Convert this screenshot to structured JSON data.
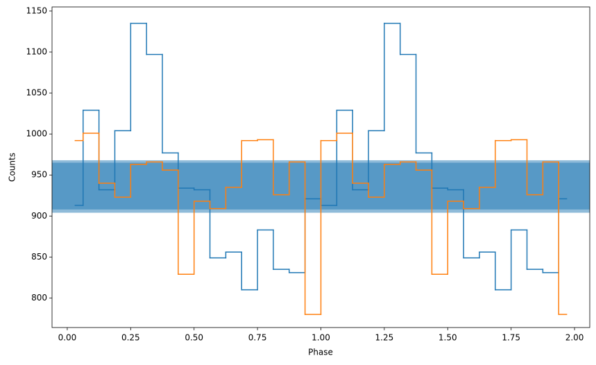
{
  "chart_data": {
    "type": "step",
    "xlabel": "Phase",
    "ylabel": "Counts",
    "x": [
      0.03125,
      0.09375,
      0.15625,
      0.21875,
      0.28125,
      0.34375,
      0.40625,
      0.46875,
      0.53125,
      0.59375,
      0.65625,
      0.71875,
      0.78125,
      0.84375,
      0.90625,
      0.96875,
      1.03125,
      1.09375,
      1.15625,
      1.21875,
      1.28125,
      1.34375,
      1.40625,
      1.46875,
      1.53125,
      1.59375,
      1.65625,
      1.71875,
      1.78125,
      1.84375,
      1.90625,
      1.96875
    ],
    "series": [
      {
        "color": "#1f77b4",
        "values": [
          913,
          1029,
          932,
          1004,
          1135,
          1097,
          977,
          934,
          932,
          849,
          856,
          810,
          883,
          835,
          831,
          921,
          913,
          1029,
          932,
          1004,
          1135,
          1097,
          977,
          934,
          932,
          849,
          856,
          810,
          883,
          835,
          831,
          921
        ]
      },
      {
        "color": "#ff7f0e",
        "values": [
          992,
          1001,
          940,
          923,
          963,
          966,
          956,
          829,
          918,
          909,
          935,
          992,
          993,
          926,
          966,
          780,
          992,
          1001,
          940,
          923,
          963,
          966,
          956,
          829,
          918,
          909,
          935,
          992,
          993,
          926,
          966,
          780
        ]
      }
    ],
    "bands": [
      {
        "lower": 904,
        "upper": 968
      },
      {
        "lower": 908,
        "upper": 965
      }
    ],
    "band_color": "#1f77b4",
    "band_opacity": 0.5,
    "xlim": [
      -0.06,
      2.06
    ],
    "xticks": [
      {
        "value": 0,
        "label": "0.00"
      },
      {
        "value": 0.25,
        "label": "0.25"
      },
      {
        "value": 0.5,
        "label": "0.50"
      },
      {
        "value": 0.75,
        "label": "0.75"
      },
      {
        "value": 1,
        "label": "1.00"
      },
      {
        "value": 1.25,
        "label": "1.25"
      },
      {
        "value": 1.5,
        "label": "1.50"
      },
      {
        "value": 1.75,
        "label": "1.75"
      },
      {
        "value": 2,
        "label": "2.00"
      }
    ],
    "ylim": [
      764,
      1155
    ],
    "yticks": [
      800,
      850,
      900,
      950,
      1000,
      1050,
      1100,
      1150
    ]
  }
}
